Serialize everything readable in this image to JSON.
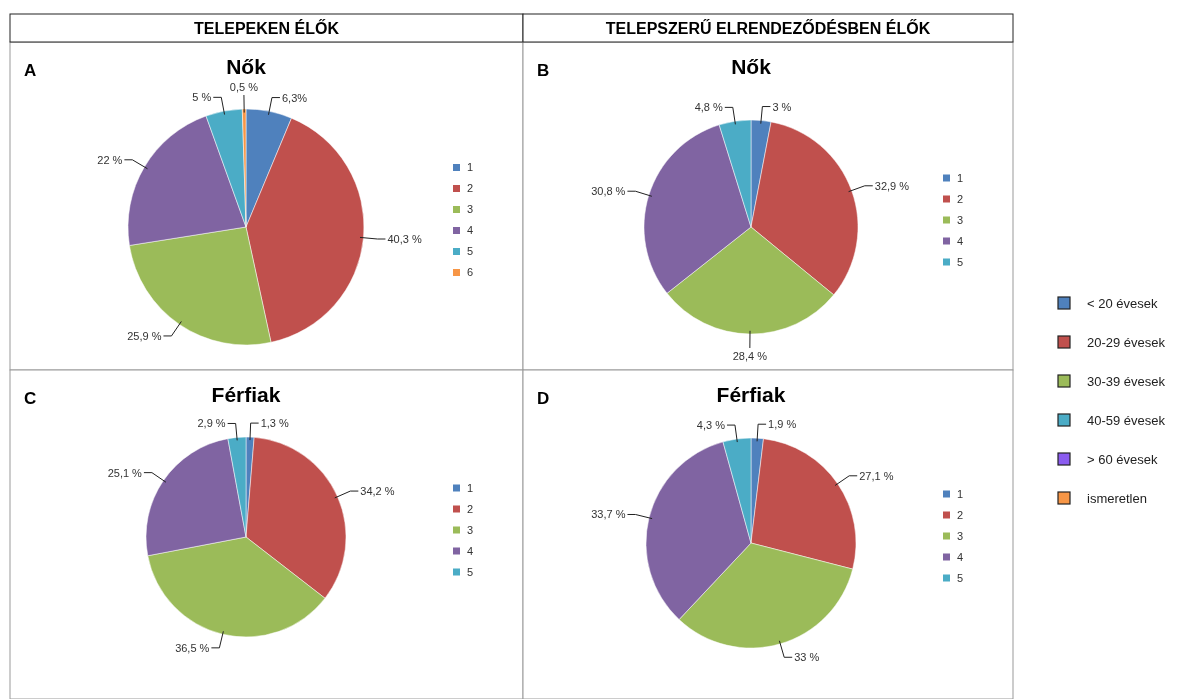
{
  "chart_data": [
    {
      "type": "pie",
      "title": "Nők",
      "annotations": [
        "TELEPEKEN ÉLŐK",
        "A"
      ],
      "categories": [
        "1",
        "2",
        "3",
        "4",
        "5",
        "6"
      ],
      "values": [
        6.3,
        40.3,
        25.9,
        22,
        5,
        0.5
      ],
      "value_labels": [
        "6,3%",
        "40,3 %",
        "25,9 %",
        "22 %",
        "5 %",
        "0,5 %"
      ],
      "colors": [
        "#4f81bd",
        "#c0504d",
        "#9bbb59",
        "#8064a2",
        "#4bacc6",
        "#f79646"
      ],
      "legend": "right"
    },
    {
      "type": "pie",
      "title": "Nők",
      "annotations": [
        "TELEPSZERŰ ELRENDEZŐDÉSBEN ÉLŐK",
        "B"
      ],
      "categories": [
        "1",
        "2",
        "3",
        "4",
        "5"
      ],
      "values": [
        3,
        32.9,
        28.4,
        30.8,
        4.8
      ],
      "value_labels": [
        "3 %",
        "32,9 %",
        "28,4 %",
        "30,8 %",
        "4,8 %"
      ],
      "colors": [
        "#4f81bd",
        "#c0504d",
        "#9bbb59",
        "#8064a2",
        "#4bacc6"
      ],
      "legend": "right"
    },
    {
      "type": "pie",
      "title": "Férfiak",
      "annotations": [
        "C"
      ],
      "categories": [
        "1",
        "2",
        "3",
        "4",
        "5"
      ],
      "values": [
        1.3,
        34.2,
        36.5,
        25.1,
        2.9
      ],
      "value_labels": [
        "1,3 %",
        "34,2 %",
        "36,5 %",
        "25,1 %",
        "2,9 %"
      ],
      "colors": [
        "#4f81bd",
        "#c0504d",
        "#9bbb59",
        "#8064a2",
        "#4bacc6"
      ],
      "legend": "right"
    },
    {
      "type": "pie",
      "title": "Férfiak",
      "annotations": [
        "D"
      ],
      "categories": [
        "1",
        "2",
        "3",
        "4",
        "5"
      ],
      "values": [
        1.9,
        27.1,
        33,
        33.7,
        4.3
      ],
      "value_labels": [
        "1,9 %",
        "27,1 %",
        "33 %",
        "33,7 %",
        "4,3 %"
      ],
      "colors": [
        "#4f81bd",
        "#c0504d",
        "#9bbb59",
        "#8064a2",
        "#4bacc6"
      ],
      "legend": "right"
    },
    {
      "type": "other",
      "categories": [
        "< 20 évesek",
        "20-29 évesek",
        "30-39 évesek",
        "40-59 évesek",
        "> 60 évesek",
        "ismeretlen"
      ],
      "colors": [
        "#4f81bd",
        "#c0504d",
        "#9bbb59",
        "#4bacc6",
        "#8b5cf0",
        "#f79646"
      ]
    }
  ]
}
